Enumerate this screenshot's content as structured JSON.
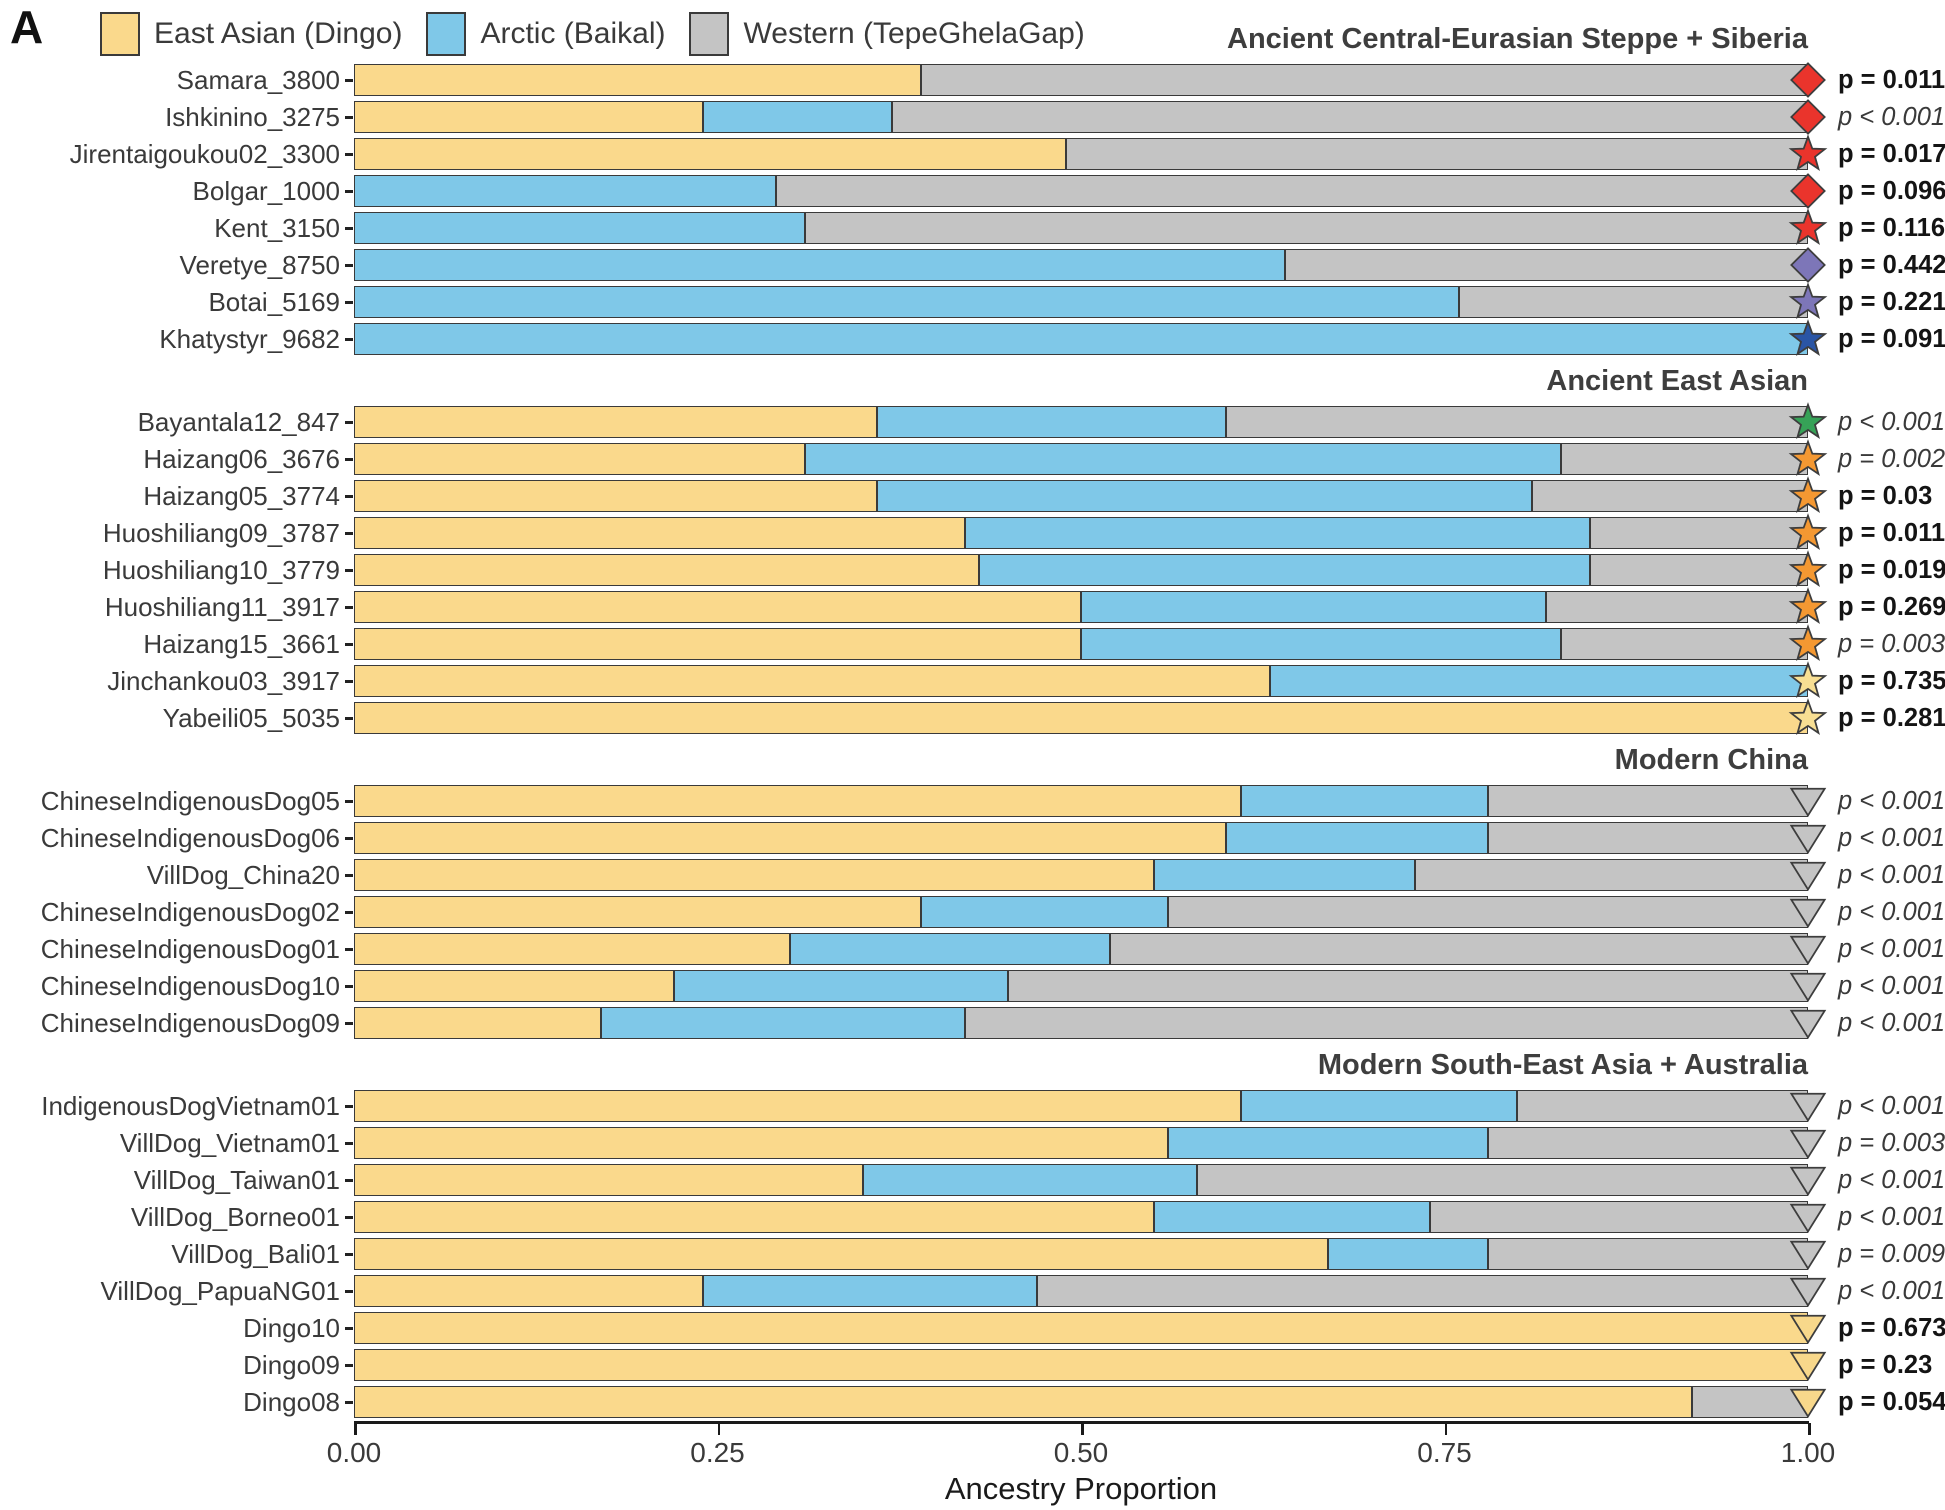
{
  "panel_label": "A",
  "legend": {
    "items": [
      {
        "label": "East Asian (Dingo)",
        "color": "#FAD98C"
      },
      {
        "label": "Arctic (Baikal)",
        "color": "#7FC8E8"
      },
      {
        "label": "Western (TepeGhelaGap)",
        "color": "#C4C4C4"
      }
    ]
  },
  "axis": {
    "label": "Ancestry Proportion",
    "ticks": [
      "0.00",
      "0.25",
      "0.50",
      "0.75",
      "1.00"
    ],
    "range": [
      0,
      1
    ]
  },
  "chart_data": {
    "type": "bar",
    "stacked": true,
    "orientation": "horizontal",
    "xlabel": "Ancestry Proportion",
    "xlim": [
      0,
      1
    ],
    "series_names": [
      "East Asian (Dingo)",
      "Arctic (Baikal)",
      "Western (TepeGhelaGap)"
    ],
    "series_colors": {
      "east_asian": "#FAD98C",
      "arctic": "#7FC8E8",
      "western": "#C4C4C4"
    },
    "marker_colors": {
      "red": "#EA342C",
      "slate": "#7D76B8",
      "navy": "#2A55A5",
      "green": "#36A257",
      "orange": "#F49832",
      "pale_yellow": "#F8DF93",
      "gray": "#C4C4C4",
      "tan": "#F8D88B"
    },
    "groups": [
      {
        "title": "Ancient Central-Eurasian Steppe + Siberia",
        "rows": [
          {
            "label": "Samara_3800",
            "values": {
              "east_asian": 0.39,
              "arctic": 0.0,
              "western": 0.61
            },
            "marker": {
              "shape": "diamond",
              "color": "red"
            },
            "p_label": "p = 0.011",
            "p_style": "bold"
          },
          {
            "label": "Ishkinino_3275",
            "values": {
              "east_asian": 0.24,
              "arctic": 0.13,
              "western": 0.63
            },
            "marker": {
              "shape": "diamond",
              "color": "red"
            },
            "p_label": "p < 0.001",
            "p_style": "italic"
          },
          {
            "label": "Jirentaigoukou02_3300",
            "values": {
              "east_asian": 0.49,
              "arctic": 0.0,
              "western": 0.51
            },
            "marker": {
              "shape": "star",
              "color": "red"
            },
            "p_label": "p = 0.017",
            "p_style": "bold"
          },
          {
            "label": "Bolgar_1000",
            "values": {
              "east_asian": 0.0,
              "arctic": 0.29,
              "western": 0.71
            },
            "marker": {
              "shape": "diamond",
              "color": "red"
            },
            "p_label": "p = 0.096",
            "p_style": "bold"
          },
          {
            "label": "Kent_3150",
            "values": {
              "east_asian": 0.0,
              "arctic": 0.31,
              "western": 0.69
            },
            "marker": {
              "shape": "star",
              "color": "red"
            },
            "p_label": "p = 0.116",
            "p_style": "bold"
          },
          {
            "label": "Veretye_8750",
            "values": {
              "east_asian": 0.0,
              "arctic": 0.64,
              "western": 0.36
            },
            "marker": {
              "shape": "diamond",
              "color": "slate"
            },
            "p_label": "p = 0.442",
            "p_style": "bold"
          },
          {
            "label": "Botai_5169",
            "values": {
              "east_asian": 0.0,
              "arctic": 0.76,
              "western": 0.24
            },
            "marker": {
              "shape": "star",
              "color": "slate"
            },
            "p_label": "p = 0.221",
            "p_style": "bold"
          },
          {
            "label": "Khatystyr_9682",
            "values": {
              "east_asian": 0.0,
              "arctic": 1.0,
              "western": 0.0
            },
            "marker": {
              "shape": "star",
              "color": "navy"
            },
            "p_label": "p = 0.091",
            "p_style": "bold"
          }
        ]
      },
      {
        "title": "Ancient East Asian",
        "rows": [
          {
            "label": "Bayantala12_847",
            "values": {
              "east_asian": 0.36,
              "arctic": 0.24,
              "western": 0.4
            },
            "marker": {
              "shape": "star",
              "color": "green"
            },
            "p_label": "p < 0.001",
            "p_style": "italic"
          },
          {
            "label": "Haizang06_3676",
            "values": {
              "east_asian": 0.31,
              "arctic": 0.52,
              "western": 0.17
            },
            "marker": {
              "shape": "star",
              "color": "orange"
            },
            "p_label": "p = 0.002",
            "p_style": "italic"
          },
          {
            "label": "Haizang05_3774",
            "values": {
              "east_asian": 0.36,
              "arctic": 0.45,
              "western": 0.19
            },
            "marker": {
              "shape": "star",
              "color": "orange"
            },
            "p_label": "p = 0.03",
            "p_style": "bold"
          },
          {
            "label": "Huoshiliang09_3787",
            "values": {
              "east_asian": 0.42,
              "arctic": 0.43,
              "western": 0.15
            },
            "marker": {
              "shape": "star",
              "color": "orange"
            },
            "p_label": "p = 0.011",
            "p_style": "bold"
          },
          {
            "label": "Huoshiliang10_3779",
            "values": {
              "east_asian": 0.43,
              "arctic": 0.42,
              "western": 0.15
            },
            "marker": {
              "shape": "star",
              "color": "orange"
            },
            "p_label": "p = 0.019",
            "p_style": "bold"
          },
          {
            "label": "Huoshiliang11_3917",
            "values": {
              "east_asian": 0.5,
              "arctic": 0.32,
              "western": 0.18
            },
            "marker": {
              "shape": "star",
              "color": "orange"
            },
            "p_label": "p = 0.269",
            "p_style": "bold"
          },
          {
            "label": "Haizang15_3661",
            "values": {
              "east_asian": 0.5,
              "arctic": 0.33,
              "western": 0.17
            },
            "marker": {
              "shape": "star",
              "color": "orange"
            },
            "p_label": "p = 0.003",
            "p_style": "italic"
          },
          {
            "label": "Jinchankou03_3917",
            "values": {
              "east_asian": 0.63,
              "arctic": 0.37,
              "western": 0.0
            },
            "marker": {
              "shape": "star",
              "color": "pale_yellow"
            },
            "p_label": "p = 0.735",
            "p_style": "bold"
          },
          {
            "label": "Yabeili05_5035",
            "values": {
              "east_asian": 1.0,
              "arctic": 0.0,
              "western": 0.0
            },
            "marker": {
              "shape": "star",
              "color": "pale_yellow"
            },
            "p_label": "p = 0.281",
            "p_style": "bold"
          }
        ]
      },
      {
        "title": "Modern China",
        "rows": [
          {
            "label": "ChineseIndigenousDog05",
            "values": {
              "east_asian": 0.61,
              "arctic": 0.17,
              "western": 0.22
            },
            "marker": {
              "shape": "triangle",
              "color": "gray"
            },
            "p_label": "p < 0.001",
            "p_style": "italic"
          },
          {
            "label": "ChineseIndigenousDog06",
            "values": {
              "east_asian": 0.6,
              "arctic": 0.18,
              "western": 0.22
            },
            "marker": {
              "shape": "triangle",
              "color": "gray"
            },
            "p_label": "p < 0.001",
            "p_style": "italic"
          },
          {
            "label": "VillDog_China20",
            "values": {
              "east_asian": 0.55,
              "arctic": 0.18,
              "western": 0.27
            },
            "marker": {
              "shape": "triangle",
              "color": "gray"
            },
            "p_label": "p < 0.001",
            "p_style": "italic"
          },
          {
            "label": "ChineseIndigenousDog02",
            "values": {
              "east_asian": 0.39,
              "arctic": 0.17,
              "western": 0.44
            },
            "marker": {
              "shape": "triangle",
              "color": "gray"
            },
            "p_label": "p < 0.001",
            "p_style": "italic"
          },
          {
            "label": "ChineseIndigenousDog01",
            "values": {
              "east_asian": 0.3,
              "arctic": 0.22,
              "western": 0.48
            },
            "marker": {
              "shape": "triangle",
              "color": "gray"
            },
            "p_label": "p < 0.001",
            "p_style": "italic"
          },
          {
            "label": "ChineseIndigenousDog10",
            "values": {
              "east_asian": 0.22,
              "arctic": 0.23,
              "western": 0.55
            },
            "marker": {
              "shape": "triangle",
              "color": "gray"
            },
            "p_label": "p < 0.001",
            "p_style": "italic"
          },
          {
            "label": "ChineseIndigenousDog09",
            "values": {
              "east_asian": 0.17,
              "arctic": 0.25,
              "western": 0.58
            },
            "marker": {
              "shape": "triangle",
              "color": "gray"
            },
            "p_label": "p < 0.001",
            "p_style": "italic"
          }
        ]
      },
      {
        "title": "Modern South-East Asia + Australia",
        "rows": [
          {
            "label": "IndigenousDogVietnam01",
            "values": {
              "east_asian": 0.61,
              "arctic": 0.19,
              "western": 0.2
            },
            "marker": {
              "shape": "triangle",
              "color": "gray"
            },
            "p_label": "p < 0.001",
            "p_style": "italic"
          },
          {
            "label": "VillDog_Vietnam01",
            "values": {
              "east_asian": 0.56,
              "arctic": 0.22,
              "western": 0.22
            },
            "marker": {
              "shape": "triangle",
              "color": "gray"
            },
            "p_label": "p = 0.003",
            "p_style": "italic"
          },
          {
            "label": "VillDog_Taiwan01",
            "values": {
              "east_asian": 0.35,
              "arctic": 0.23,
              "western": 0.42
            },
            "marker": {
              "shape": "triangle",
              "color": "gray"
            },
            "p_label": "p < 0.001",
            "p_style": "italic"
          },
          {
            "label": "VillDog_Borneo01",
            "values": {
              "east_asian": 0.55,
              "arctic": 0.19,
              "western": 0.26
            },
            "marker": {
              "shape": "triangle",
              "color": "gray"
            },
            "p_label": "p < 0.001",
            "p_style": "italic"
          },
          {
            "label": "VillDog_Bali01",
            "values": {
              "east_asian": 0.67,
              "arctic": 0.11,
              "western": 0.22
            },
            "marker": {
              "shape": "triangle",
              "color": "gray"
            },
            "p_label": "p = 0.009",
            "p_style": "italic"
          },
          {
            "label": "VillDog_PapuaNG01",
            "values": {
              "east_asian": 0.24,
              "arctic": 0.23,
              "western": 0.53
            },
            "marker": {
              "shape": "triangle",
              "color": "gray"
            },
            "p_label": "p < 0.001",
            "p_style": "italic"
          },
          {
            "label": "Dingo10",
            "values": {
              "east_asian": 1.0,
              "arctic": 0.0,
              "western": 0.0
            },
            "marker": {
              "shape": "triangle",
              "color": "tan"
            },
            "p_label": "p = 0.673",
            "p_style": "bold"
          },
          {
            "label": "Dingo09",
            "values": {
              "east_asian": 1.0,
              "arctic": 0.0,
              "western": 0.0
            },
            "marker": {
              "shape": "triangle",
              "color": "tan"
            },
            "p_label": "p = 0.23",
            "p_style": "bold"
          },
          {
            "label": "Dingo08",
            "values": {
              "east_asian": 0.92,
              "arctic": 0.0,
              "western": 0.08
            },
            "marker": {
              "shape": "triangle",
              "color": "tan"
            },
            "p_label": "p = 0.054",
            "p_style": "bold"
          }
        ]
      }
    ]
  }
}
